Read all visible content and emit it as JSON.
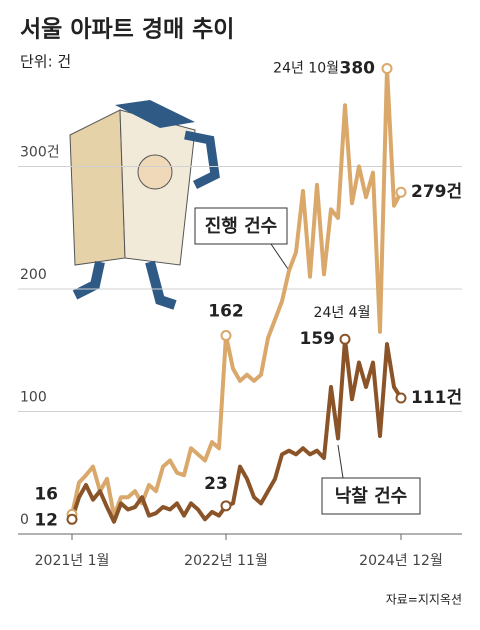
{
  "chart_data": {
    "type": "line",
    "title": "서울 아파트 경매 추이",
    "subtitle": "단위: 건",
    "source": "자료=지지옥션",
    "categories": [
      "2021년 1월",
      null,
      null,
      null,
      null,
      null,
      null,
      null,
      null,
      null,
      null,
      null,
      null,
      null,
      null,
      null,
      null,
      null,
      null,
      null,
      null,
      null,
      "2022년 11월",
      null,
      null,
      null,
      null,
      null,
      null,
      null,
      null,
      null,
      null,
      null,
      null,
      null,
      null,
      null,
      null,
      null,
      null,
      null,
      null,
      null,
      null,
      null,
      null,
      "2024년 12월"
    ],
    "ylim": [
      0,
      400
    ],
    "yticks": [
      0,
      100,
      200,
      {
        "value": 300,
        "label": "300건"
      }
    ],
    "grid": true,
    "annotations": [
      "24년 10월",
      "24년 4월"
    ],
    "series": [
      {
        "name": "진행 건수",
        "color": "#d9a86a",
        "values": [
          16,
          42,
          48,
          55,
          35,
          45,
          15,
          30,
          30,
          35,
          25,
          40,
          35,
          55,
          60,
          50,
          48,
          70,
          65,
          60,
          75,
          70,
          162,
          135,
          125,
          130,
          125,
          130,
          160,
          175,
          190,
          215,
          230,
          280,
          210,
          285,
          212,
          265,
          258,
          350,
          270,
          300,
          275,
          295,
          165,
          380,
          268,
          279
        ],
        "value_labels": [
          "16",
          null,
          null,
          null,
          null,
          null,
          null,
          null,
          null,
          null,
          null,
          null,
          null,
          null,
          null,
          null,
          null,
          null,
          null,
          null,
          null,
          null,
          "162",
          null,
          null,
          null,
          null,
          null,
          null,
          null,
          null,
          null,
          null,
          null,
          null,
          null,
          null,
          null,
          null,
          null,
          null,
          null,
          null,
          null,
          null,
          "380",
          null,
          "279건"
        ]
      },
      {
        "name": "낙찰 건수",
        "color": "#8a5428",
        "values": [
          12,
          30,
          40,
          28,
          35,
          22,
          10,
          25,
          20,
          22,
          30,
          15,
          17,
          22,
          20,
          25,
          15,
          25,
          20,
          12,
          18,
          15,
          23,
          25,
          55,
          45,
          30,
          25,
          35,
          45,
          65,
          68,
          65,
          70,
          65,
          68,
          62,
          120,
          78,
          159,
          110,
          140,
          120,
          140,
          80,
          155,
          120,
          111
        ],
        "value_labels": [
          "12",
          null,
          null,
          null,
          null,
          null,
          null,
          null,
          null,
          null,
          null,
          null,
          null,
          null,
          null,
          null,
          null,
          null,
          null,
          null,
          null,
          null,
          "23",
          null,
          null,
          null,
          null,
          null,
          null,
          null,
          null,
          null,
          null,
          null,
          null,
          null,
          null,
          null,
          null,
          "159",
          null,
          null,
          null,
          null,
          null,
          null,
          null,
          "111건"
        ]
      }
    ]
  }
}
